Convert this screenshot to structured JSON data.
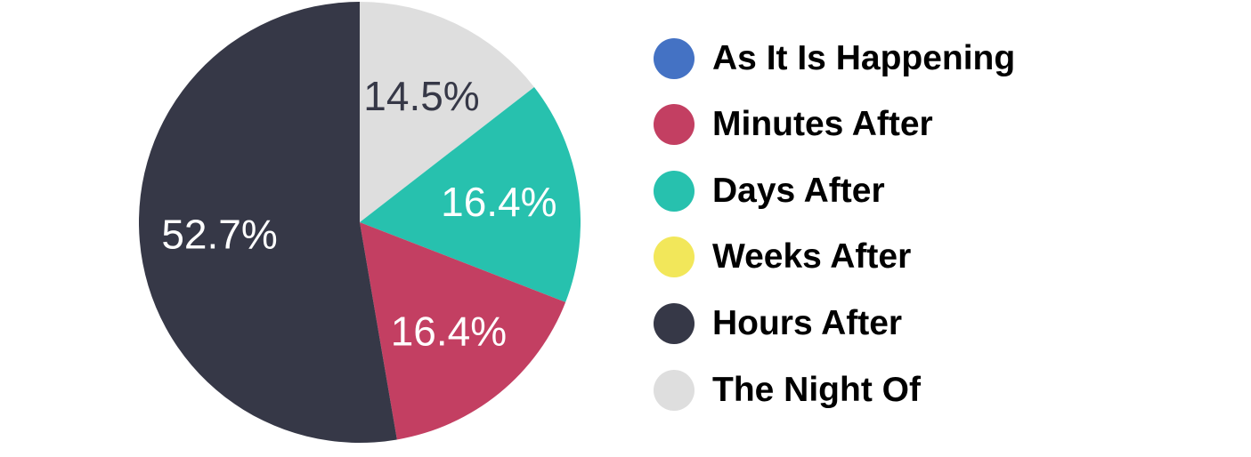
{
  "chart_data": {
    "type": "pie",
    "title": "",
    "legend_position": "right",
    "slices": [
      {
        "name": "As It Is Happening",
        "value": 0,
        "color": "#4472c4",
        "label": ""
      },
      {
        "name": "Minutes After",
        "value": 16.4,
        "color": "#c33f62",
        "label": "16.4%",
        "label_color": "#ffffff"
      },
      {
        "name": "Days After",
        "value": 16.4,
        "color": "#27c1ae",
        "label": "16.4%",
        "label_color": "#ffffff"
      },
      {
        "name": "Weeks After",
        "value": 0,
        "color": "#f2e75a",
        "label": ""
      },
      {
        "name": "Hours After",
        "value": 52.7,
        "color": "#363847",
        "label": "52.7%",
        "label_color": "#ffffff"
      },
      {
        "name": "The Night Of",
        "value": 14.5,
        "color": "#dedede",
        "label": "14.5%",
        "label_color": "#363847"
      }
    ]
  }
}
